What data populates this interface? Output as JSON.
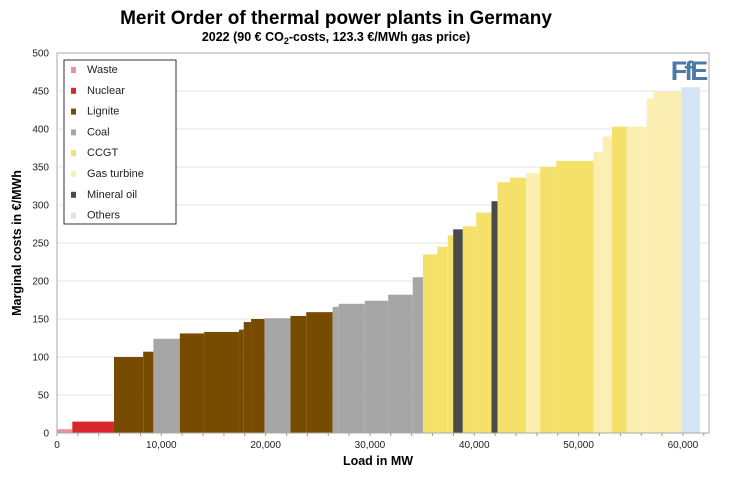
{
  "chart_data": {
    "type": "bar",
    "title": "Merit Order of thermal power plants in Germany",
    "subtitle_parts": [
      "2022 (90 € CO",
      "2",
      "-costs, 123.3 €/MWh gas price)"
    ],
    "xlabel": "Load in MW",
    "ylabel": "Marginal costs in €/MWh",
    "xlim": [
      0,
      62500
    ],
    "ylim": [
      0,
      500
    ],
    "yticks": [
      0,
      50,
      100,
      150,
      200,
      250,
      300,
      350,
      400,
      450,
      500
    ],
    "xticks": [
      0,
      10000,
      20000,
      30000,
      40000,
      50000,
      60000
    ],
    "xtick_labels": [
      "0",
      "10,000",
      "20,000",
      "30,000",
      "40,000",
      "50,000",
      "60,000"
    ],
    "grid": true,
    "legend_placement": "top-left",
    "logo": "FfE",
    "legend": [
      {
        "name": "Waste",
        "color": "#e8929c"
      },
      {
        "name": "Nuclear",
        "color": "#d8262b"
      },
      {
        "name": "Lignite",
        "color": "#774c00"
      },
      {
        "name": "Coal",
        "color": "#a6a6a6"
      },
      {
        "name": "CCGT",
        "color": "#f5e06a"
      },
      {
        "name": "Gas turbine",
        "color": "#faefb0"
      },
      {
        "name": "Mineral oil",
        "color": "#4a4a4a"
      },
      {
        "name": "Others",
        "color": "#d4e4f3"
      }
    ],
    "segments_fields": [
      "start_MW",
      "end_MW",
      "cost_EUR_per_MWh",
      "type"
    ],
    "segments": [
      [
        0,
        1470,
        5,
        "Waste"
      ],
      [
        1470,
        5460,
        15,
        "Nuclear"
      ],
      [
        5460,
        8260,
        100,
        "Lignite"
      ],
      [
        8260,
        9240,
        107,
        "Lignite"
      ],
      [
        9240,
        11770,
        124,
        "Coal"
      ],
      [
        11770,
        14100,
        131,
        "Lignite"
      ],
      [
        14100,
        17450,
        133,
        "Lignite"
      ],
      [
        17450,
        17900,
        136,
        "Lignite"
      ],
      [
        17900,
        18600,
        146,
        "Lignite"
      ],
      [
        18600,
        19900,
        150,
        "Lignite"
      ],
      [
        19900,
        22380,
        151,
        "Coal"
      ],
      [
        22380,
        23890,
        154,
        "Lignite"
      ],
      [
        23890,
        26420,
        159,
        "Lignite"
      ],
      [
        26420,
        27000,
        166,
        "Coal"
      ],
      [
        27000,
        29500,
        170,
        "Coal"
      ],
      [
        29500,
        31750,
        174,
        "Coal"
      ],
      [
        31750,
        34100,
        182,
        "Coal"
      ],
      [
        34100,
        35080,
        205,
        "Coal"
      ],
      [
        35080,
        36460,
        235,
        "CCGT"
      ],
      [
        36460,
        37450,
        245,
        "CCGT"
      ],
      [
        37450,
        37980,
        260,
        "CCGT"
      ],
      [
        37980,
        38900,
        268,
        "Mineral oil"
      ],
      [
        38900,
        40180,
        272,
        "CCGT"
      ],
      [
        40180,
        41650,
        290,
        "CCGT"
      ],
      [
        41650,
        42230,
        305,
        "Mineral oil"
      ],
      [
        42230,
        43430,
        330,
        "CCGT"
      ],
      [
        43430,
        44980,
        336,
        "CCGT"
      ],
      [
        44980,
        46310,
        342,
        "Gas turbine"
      ],
      [
        46310,
        47870,
        350,
        "CCGT"
      ],
      [
        47870,
        51420,
        358,
        "CCGT"
      ],
      [
        51420,
        52310,
        370,
        "Gas turbine"
      ],
      [
        52310,
        53200,
        390,
        "Gas turbine"
      ],
      [
        53200,
        54600,
        403,
        "CCGT"
      ],
      [
        54600,
        56530,
        403,
        "Gas turbine"
      ],
      [
        56530,
        57190,
        440,
        "Gas turbine"
      ],
      [
        57190,
        59860,
        449,
        "Gas turbine"
      ],
      [
        59860,
        61630,
        455,
        "Others"
      ]
    ]
  }
}
